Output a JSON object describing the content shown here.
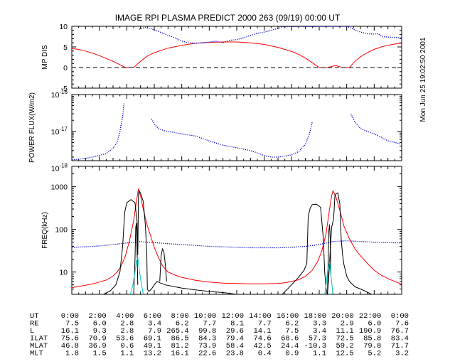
{
  "header": {
    "title": "IMAGE  RPI PLASMA PREDICT 2000 263 (09/19) 00:00 UT",
    "timestamp": "Mon Jun 25 19:02:50 2001"
  },
  "colors": {
    "red": "#ff0000",
    "blue": "#0000cc",
    "cyan": "#00c8c8",
    "black": "#000000"
  },
  "chart_data": [
    {
      "type": "line",
      "id": "mp-dis",
      "ylabel": "MP DIS",
      "ylim": [
        -5,
        10
      ],
      "yticks": [
        "-5",
        "0",
        "5",
        "10"
      ],
      "xlim": [
        0,
        24
      ],
      "series": [
        {
          "name": "red",
          "color": "#ff0000",
          "style": "solid",
          "x": [
            0,
            0.5,
            1,
            1.5,
            2,
            2.5,
            3,
            3.5,
            3.9,
            4.5,
            5.0,
            5.5,
            6,
            7,
            8,
            9,
            10,
            11,
            12,
            13,
            14,
            15,
            16,
            16.5,
            17,
            17.4,
            18.0,
            18.6,
            19.2,
            19.7,
            20.2,
            20.6,
            21,
            21.5,
            22,
            22.5,
            23,
            23.5,
            24
          ],
          "y": [
            4.6,
            4.4,
            4.0,
            3.5,
            2.9,
            2.2,
            1.5,
            0.7,
            0,
            0,
            1.5,
            2.8,
            3.6,
            4.7,
            5.4,
            5.9,
            6.1,
            6.2,
            6.2,
            6.0,
            5.6,
            4.9,
            3.9,
            3.2,
            2.3,
            1.4,
            0,
            0,
            0.5,
            0,
            0,
            1.5,
            2.6,
            3.6,
            4.4,
            5.0,
            5.4,
            5.7,
            5.9
          ]
        },
        {
          "name": "blue",
          "color": "#0000cc",
          "style": "dotted",
          "x": [
            4.9,
            5.3,
            5.7,
            6.1,
            6.5,
            7,
            7.5,
            8,
            8.5,
            9,
            9.5,
            10,
            10.5,
            11,
            11.5,
            12,
            12.5,
            13,
            13.5,
            14,
            14.5,
            15,
            15.3,
            20.0,
            20.5,
            21,
            21.5,
            22,
            22.3,
            22.6,
            23,
            23.5,
            24
          ],
          "y": [
            9.3,
            9.7,
            9.5,
            9.0,
            8.5,
            7.8,
            7.2,
            6.4,
            6.0,
            5.9,
            6.0,
            6.2,
            6.4,
            6.0,
            6.6,
            6.8,
            7.2,
            7.8,
            8.3,
            8.6,
            9.0,
            9.5,
            9.9,
            10.0,
            9.3,
            8.6,
            8.2,
            8.1,
            8.2,
            7.5,
            7.4,
            7.3,
            7.2
          ]
        },
        {
          "name": "zero",
          "color": "#000000",
          "style": "dashed",
          "x": [
            0,
            24
          ],
          "y": [
            0,
            0
          ]
        }
      ]
    },
    {
      "type": "scatter",
      "id": "power-flux",
      "ylabel": "POWER FLUX(W/m2)",
      "yscale": "log",
      "ylim": [
        1.6e-18,
        1e-16
      ],
      "yticks": [
        {
          "base": "10",
          "exp": "-16"
        },
        {
          "base": "10",
          "exp": "-17"
        },
        {
          "base": "10",
          "exp": "-18"
        }
      ],
      "xlim": [
        0,
        24
      ],
      "series": [
        {
          "name": "blue",
          "color": "#0000cc",
          "style": "dotted",
          "x": [
            0,
            0.5,
            1,
            1.5,
            2,
            2.5,
            3,
            3.3,
            3.5,
            3.7,
            3.8
          ],
          "y": [
            1.7e-18,
            1.75e-18,
            1.85e-18,
            2e-18,
            2.2e-18,
            2.5e-18,
            3.5e-18,
            5e-18,
            1e-17,
            2.5e-17,
            6e-17
          ]
        },
        {
          "name": "blue",
          "color": "#0000cc",
          "style": "dotted",
          "x": [
            5.8,
            6.0,
            6.3,
            6.7,
            7,
            8,
            9,
            10,
            11,
            12,
            13,
            13.5,
            14,
            14.5,
            15,
            16,
            16.5,
            17,
            17.3,
            17.5
          ],
          "y": [
            2.2e-17,
            1.6e-17,
            1.2e-17,
            1.05e-17,
            1e-17,
            8.5e-18,
            7.5e-18,
            5.5e-18,
            4.2e-18,
            3.6e-18,
            3e-18,
            2.6e-18,
            2.2e-18,
            2e-18,
            2e-18,
            2.3e-18,
            2.8e-18,
            4.5e-18,
            9e-18,
            1.8e-17
          ]
        },
        {
          "name": "blue",
          "color": "#0000cc",
          "style": "dotted",
          "x": [
            20.3,
            20.6,
            21,
            21.5,
            22,
            22.5,
            23,
            23.5,
            24
          ],
          "y": [
            3e-17,
            1.8e-17,
            1.2e-17,
            1e-17,
            8.5e-18,
            7e-18,
            5.5e-18,
            5e-18,
            4.5e-18
          ]
        }
      ]
    },
    {
      "type": "line",
      "id": "freq",
      "ylabel": "FREQ(kHz)",
      "yscale": "log",
      "ylim": [
        3,
        3000
      ],
      "yticks": [
        "10",
        "100",
        "1000"
      ],
      "xlim": [
        0,
        24
      ],
      "xticks": [
        "0:00",
        "2:00",
        "4:00",
        "6:00",
        "8:00",
        "10:00",
        "12:00",
        "14:00",
        "16:00",
        "18:00",
        "20:00",
        "22:00",
        "0:00"
      ],
      "series": [
        {
          "name": "red",
          "color": "#ff0000",
          "style": "solid",
          "x": [
            0,
            0.5,
            1,
            1.5,
            2,
            2.5,
            3,
            3.3,
            3.6,
            3.9,
            4.2,
            4.5,
            4.7,
            4.85,
            5.0,
            5.2,
            5.5,
            5.8,
            6.0,
            6.3,
            6.6,
            7.0,
            7.5,
            8,
            9,
            10,
            11,
            12,
            13,
            14,
            15,
            15.5,
            16,
            16.5,
            17,
            17.5,
            17.9,
            18.2,
            18.5,
            18.7,
            18.9,
            19.0,
            19.2,
            19.5,
            19.8,
            20.2,
            20.6,
            21,
            21.5,
            22,
            22.5,
            23,
            23.5,
            24
          ],
          "y": [
            4.3,
            4.6,
            4.9,
            5.3,
            5.8,
            6.5,
            8,
            10,
            14,
            24,
            55,
            160,
            450,
            900,
            600,
            300,
            120,
            60,
            38,
            22,
            14,
            10,
            8.5,
            7.5,
            6.4,
            5.8,
            5.5,
            5.4,
            5.3,
            5.3,
            5.4,
            5.6,
            6.0,
            6.6,
            8.0,
            11,
            18,
            32,
            80,
            230,
            600,
            800,
            600,
            280,
            120,
            60,
            35,
            24,
            16,
            11,
            8.5,
            7,
            6,
            5.2
          ]
        },
        {
          "name": "blue",
          "color": "#0000cc",
          "style": "dotted",
          "x": [
            0,
            1,
            2,
            3,
            4,
            5,
            5.5,
            6,
            7,
            8,
            9,
            10,
            11,
            12,
            13,
            14,
            15,
            16,
            17,
            18,
            19,
            20,
            21,
            22,
            23,
            24
          ],
          "y": [
            38,
            39,
            41,
            44,
            48,
            52,
            50,
            49,
            46,
            44,
            42,
            40,
            39,
            38,
            37,
            37,
            37,
            38,
            40,
            44,
            52,
            54,
            52,
            50,
            49,
            48
          ]
        },
        {
          "name": "black",
          "color": "#000000",
          "style": "solid",
          "x": [
            2.3,
            2.8,
            3.2,
            3.5,
            3.7,
            3.85,
            4.0,
            4.3,
            4.6,
            4.75,
            4.8,
            4.85,
            4.9,
            5.0,
            5.2,
            5.35,
            5.45,
            5.5,
            5.6,
            5.8,
            6.0,
            6.2,
            6.4,
            6.8,
            7.5,
            8,
            9,
            10,
            11,
            12
          ],
          "y": [
            3,
            3.6,
            5,
            10,
            40,
            250,
            420,
            500,
            420,
            150,
            25,
            650,
            800,
            700,
            450,
            130,
            30,
            4,
            3.5,
            4,
            5,
            6,
            5.6,
            5,
            4.5,
            4.2,
            3.8,
            3.5,
            3.3,
            3
          ]
        },
        {
          "name": "black",
          "color": "#000000",
          "style": "solid",
          "x": [
            15.3,
            15.7,
            16.1,
            16.5,
            16.9,
            17.1,
            17.2,
            17.35,
            17.5,
            17.8,
            18.1,
            18.3,
            18.4,
            18.5,
            18.6,
            18.7,
            18.9,
            19.05,
            19.15,
            19.35,
            19.5,
            19.6,
            19.7,
            19.8,
            20,
            20.2,
            20.6,
            21,
            21.4,
            21.8
          ],
          "y": [
            3,
            4,
            5.5,
            7.5,
            11,
            16,
            200,
            320,
            380,
            390,
            330,
            60,
            10,
            4,
            3,
            8,
            110,
            180,
            650,
            720,
            400,
            60,
            25,
            15,
            8,
            6,
            4.5,
            4,
            3.5,
            3
          ]
        },
        {
          "name": "black-spike",
          "color": "#000000",
          "style": "solid",
          "x": [
            4.5,
            4.6,
            4.65,
            4.7,
            4.75,
            4.8
          ],
          "y": [
            3,
            20,
            110,
            140,
            30,
            5
          ]
        },
        {
          "name": "black-bump",
          "color": "#000000",
          "style": "solid",
          "x": [
            6.4,
            6.5,
            6.6,
            6.7,
            6.8,
            6.9
          ],
          "y": [
            6,
            25,
            35,
            30,
            15,
            6
          ]
        },
        {
          "name": "black-spike",
          "color": "#000000",
          "style": "solid",
          "x": [
            18.6,
            18.65,
            18.7,
            18.75,
            18.8,
            18.85
          ],
          "y": [
            3,
            18,
            90,
            130,
            60,
            8
          ]
        },
        {
          "name": "cyan",
          "color": "#00c8c8",
          "style": "solid",
          "x": [
            4.25,
            4.45,
            4.6,
            4.7,
            4.8,
            4.9,
            5.0,
            5.1,
            5.2
          ],
          "y": [
            3,
            5,
            10,
            18,
            22,
            12,
            7,
            4.5,
            3
          ]
        },
        {
          "name": "cyan",
          "color": "#00c8c8",
          "style": "solid",
          "x": [
            18.4,
            18.5,
            18.6,
            18.7,
            18.75,
            18.8,
            18.9,
            19.0
          ],
          "y": [
            3,
            5,
            10,
            15,
            17,
            12,
            6,
            3
          ]
        }
      ]
    }
  ],
  "table": {
    "rows": [
      {
        "label": "UT",
        "values": [
          "0:00",
          "2:00",
          "4:00",
          "6:00",
          "8:00",
          "10:00",
          "12:00",
          "14:00",
          "16:00",
          "18:00",
          "20:00",
          "22:00",
          "0:00"
        ]
      },
      {
        "label": "RE",
        "values": [
          "7.5",
          "6.0",
          "2.8",
          "3.4",
          "6.2",
          "7.7",
          "8.1",
          "7.7",
          "6.2",
          "3.3",
          "2.9",
          "6.0",
          "7.6"
        ]
      },
      {
        "label": "L",
        "values": [
          "16.1",
          "9.3",
          "2.8",
          "7.9",
          "265.4",
          "99.8",
          "29.6",
          "14.1",
          "7.5",
          "3.4",
          "11.1",
          "190.9",
          "76.7"
        ]
      },
      {
        "label": "ILAT",
        "values": [
          "75.6",
          "70.9",
          "53.6",
          "69.1",
          "86.5",
          "84.3",
          "79.4",
          "74.6",
          "68.6",
          "57.3",
          "72.5",
          "85.8",
          "83.4"
        ]
      },
      {
        "label": "MLAT",
        "values": [
          "46.8",
          "36.9",
          "0.6",
          "49.1",
          "81.2",
          "73.9",
          "58.4",
          "42.5",
          "24.4",
          "-10.3",
          "59.2",
          "79.8",
          "71.7"
        ]
      },
      {
        "label": "MLT",
        "values": [
          "1.8",
          "1.5",
          "1.1",
          "13.2",
          "16.1",
          "22.6",
          "23.8",
          "0.4",
          "0.9",
          "1.1",
          "12.5",
          "5.2",
          "3.2"
        ]
      }
    ]
  }
}
